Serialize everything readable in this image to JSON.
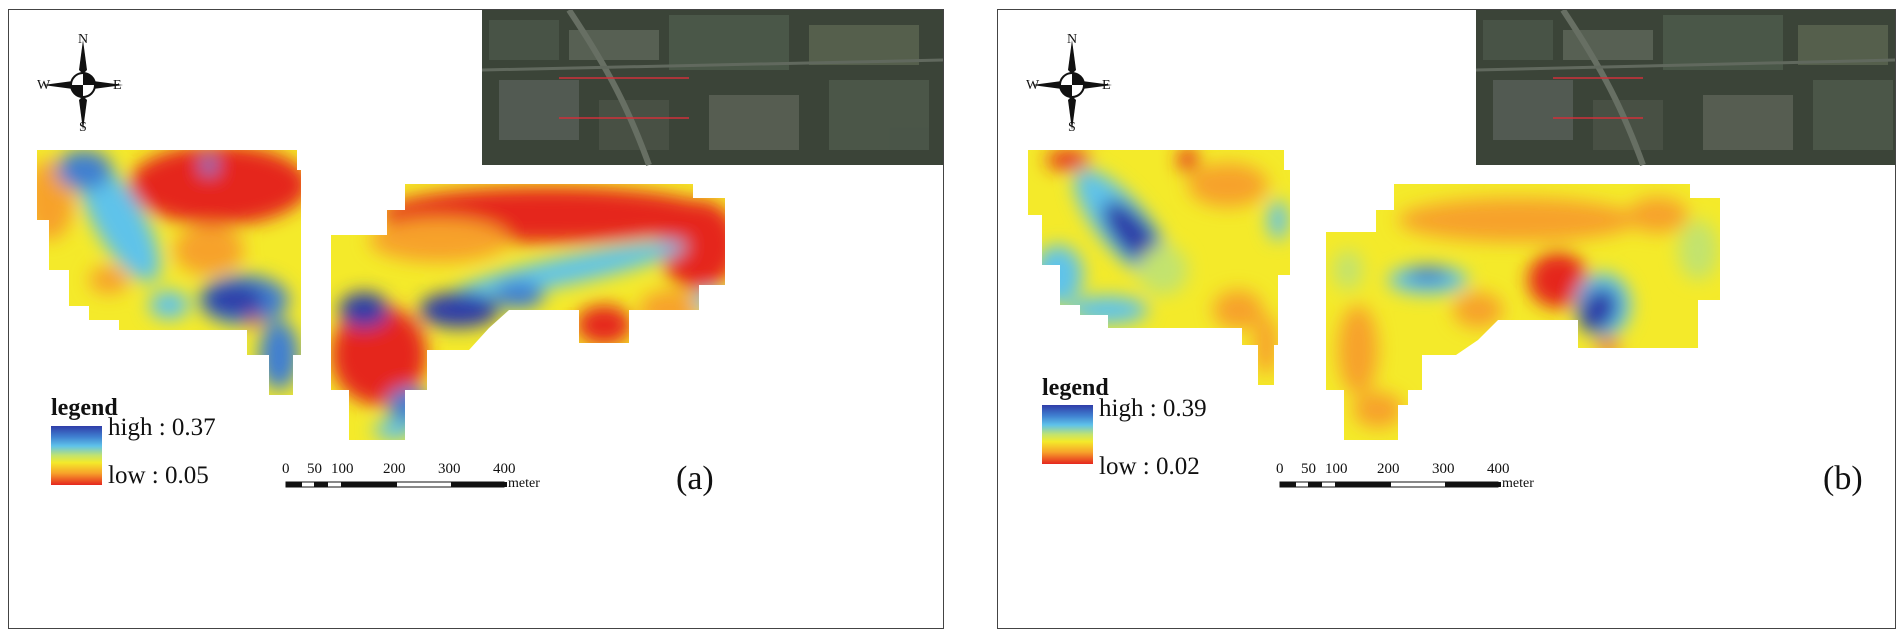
{
  "figure": {
    "panels": [
      {
        "id": "a",
        "label": "(a)",
        "legend": {
          "title": "legend",
          "high_text": "high : 0.37",
          "low_text": "low : 0.05",
          "high_value": 0.37,
          "low_value": 0.05
        },
        "scale_bar": {
          "ticks": [
            "0",
            "50",
            "100",
            "200",
            "300",
            "400"
          ],
          "unit": "meter"
        },
        "compass": {
          "north": "N",
          "south": "S",
          "east": "E",
          "west": "W"
        }
      },
      {
        "id": "b",
        "label": "(b)",
        "legend": {
          "title": "legend",
          "high_text": "high : 0.39",
          "low_text": "low : 0.02",
          "high_value": 0.39,
          "low_value": 0.02
        },
        "scale_bar": {
          "ticks": [
            "0",
            "50",
            "100",
            "200",
            "300",
            "400"
          ],
          "unit": "meter"
        },
        "compass": {
          "north": "N",
          "south": "S",
          "east": "E",
          "west": "W"
        }
      }
    ],
    "colors": {
      "high": "#2f3da8",
      "mid_high": "#5fc3ea",
      "mid": "#f4ea2a",
      "mid_low": "#f7a22a",
      "low": "#e5261f",
      "satellite": "#3b4438",
      "study_area_outline": "#d0303a"
    }
  }
}
